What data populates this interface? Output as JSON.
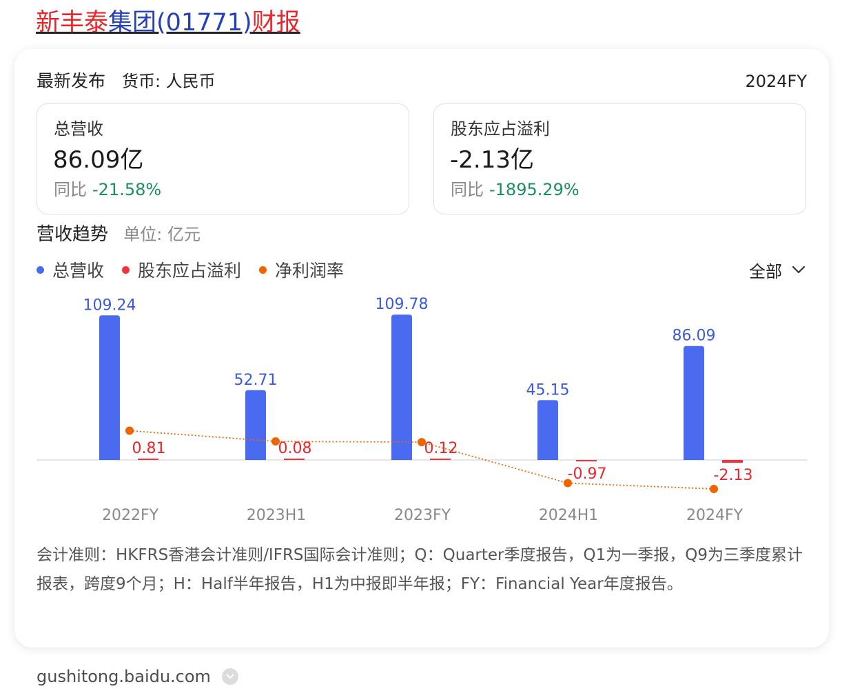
{
  "title": {
    "part1": "新丰泰",
    "part2": "集团(01771)",
    "part3": "财报"
  },
  "header": {
    "latest_label": "最新发布",
    "currency_label": "货币: 人民币",
    "period": "2024FY"
  },
  "metrics": [
    {
      "label": "总营收",
      "value": "86.09亿",
      "yoy_label": "同比",
      "yoy_value": "-21.58%"
    },
    {
      "label": "股东应占溢利",
      "value": "-2.13亿",
      "yoy_label": "同比",
      "yoy_value": "-1895.29%"
    }
  ],
  "trend": {
    "title": "营收趋势",
    "unit": "单位: 亿元"
  },
  "legend": [
    {
      "label": "总营收",
      "color": "#4a6bef"
    },
    {
      "label": "股东应占溢利",
      "color": "#f5323c"
    },
    {
      "label": "净利润率",
      "color": "#f06400"
    }
  ],
  "filter": {
    "label": "全部",
    "icon": "chevron-down-icon"
  },
  "chart_data": {
    "type": "bar",
    "categories": [
      "2022FY",
      "2023H1",
      "2023FY",
      "2024H1",
      "2024FY"
    ],
    "series": [
      {
        "name": "总营收",
        "type": "bar",
        "color": "#4a6bef",
        "label_color": "#3b5bdb",
        "values": [
          109.24,
          52.71,
          109.78,
          45.15,
          86.09
        ]
      },
      {
        "name": "股东应占溢利",
        "type": "bar",
        "color": "#f5323c",
        "label_color": "#e8262c",
        "values": [
          0.81,
          0.08,
          0.12,
          -0.97,
          -2.13
        ]
      },
      {
        "name": "净利润率",
        "type": "line",
        "color": "#f06400",
        "values": [
          0.74,
          0.15,
          0.11,
          -2.15,
          -2.47
        ],
        "unit": "%",
        "value_labels_shown": false
      }
    ],
    "ylim": [
      -10,
      112
    ],
    "margin_ylim": [
      -10,
      5
    ],
    "grid": false,
    "baseline": true
  },
  "note": "会计准则：HKFRS香港会计准则/IFRS国际会计准则；Q：Quarter季度报告，Q1为一季报，Q9为三季度累计报表，跨度9个月；H：Half半年报告，H1为中报即半年报；FY：Financial Year年度报告。",
  "source": {
    "domain": "gushitong.baidu.com",
    "icon": "chevron-down-icon"
  }
}
